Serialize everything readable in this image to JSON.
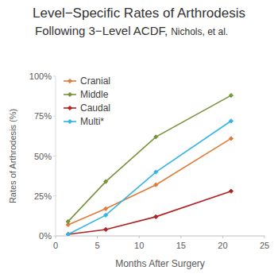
{
  "chart_data": {
    "type": "line",
    "title": "Level−Specific Rates of Arthrodesis",
    "subtitle": "Following 3−Level ACDF,",
    "annotations": [
      "Nichols, et al."
    ],
    "x_label": "Months After Surgery",
    "y_label": "Rates of Arthrodesis (%)",
    "x": [
      1.5,
      6,
      12,
      21
    ],
    "series": [
      {
        "name": "Cranial",
        "color": "#e07b39",
        "values": [
          7,
          17,
          32,
          61
        ],
        "marker": "diamond"
      },
      {
        "name": "Middle",
        "color": "#77933c",
        "values": [
          9,
          34,
          62,
          88
        ],
        "marker": "diamond"
      },
      {
        "name": "Caudal",
        "color": "#b22222",
        "values": [
          1,
          4,
          12,
          28
        ],
        "marker": "diamond"
      },
      {
        "name": "Multi*",
        "color": "#33b5e5",
        "values": [
          1,
          13,
          40,
          72
        ],
        "marker": "diamond"
      }
    ],
    "xlim": [
      0,
      25
    ],
    "xticks": [
      0,
      5,
      10,
      15,
      20,
      25
    ],
    "ylim": [
      0,
      100
    ],
    "yticks": [
      {
        "value": 0,
        "label": "0%"
      },
      {
        "value": 25,
        "label": "25%"
      },
      {
        "value": 50,
        "label": "50%"
      },
      {
        "value": 75,
        "label": "75%"
      },
      {
        "value": 100,
        "label": "100%"
      }
    ],
    "grid": false,
    "legend": "upper left"
  }
}
